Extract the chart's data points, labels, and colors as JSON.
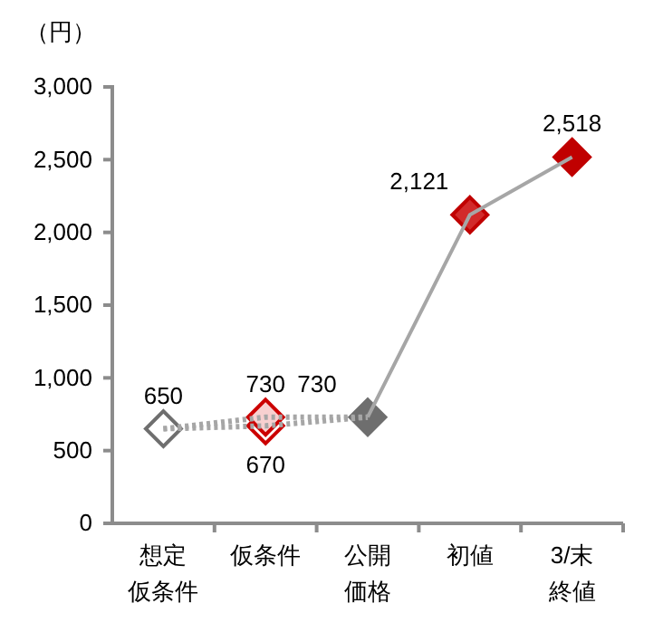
{
  "chart_data": {
    "type": "line",
    "ylabel": "（円）",
    "categories": [
      "想定仮条件",
      "仮条件",
      "公開価格",
      "初値",
      "3/末終値"
    ],
    "ylim": [
      0,
      3000
    ],
    "yticks": [
      0,
      {
        "value": 500,
        "label": "500"
      },
      {
        "value": 1000,
        "label": "1,000"
      },
      {
        "value": 1500,
        "label": "1,500"
      },
      {
        "value": 2000,
        "label": "2,000"
      },
      {
        "value": 2500,
        "label": "2,500"
      },
      {
        "value": 3000,
        "label": "3,000"
      }
    ],
    "grid": false,
    "series": [
      {
        "color": "#a6a6a6",
        "line_style": "dotted",
        "values": [
          650,
          670,
          730,
          null,
          null
        ]
      },
      {
        "color": "#a6a6a6",
        "line_style": "dotted",
        "values": [
          650,
          730,
          730,
          null,
          null
        ]
      },
      {
        "color": "#a6a6a6",
        "line_style": "solid",
        "values": [
          null,
          null,
          730,
          2121,
          2518
        ]
      },
      {
        "type": "scatter",
        "color": "#cc0000",
        "marker": "diamond",
        "values": [
          null,
          670,
          null,
          null,
          null
        ],
        "colors": [
          null,
          "#ffffff",
          null,
          null,
          null
        ],
        "value_labels": [
          null,
          "670",
          null,
          null,
          null
        ]
      },
      {
        "type": "scatter",
        "color": "#cc0000",
        "marker": "diamond",
        "values": [
          null,
          730,
          null,
          null,
          null
        ],
        "colors": [
          null,
          "#f8d0d0",
          null,
          null,
          null
        ],
        "value_labels": [
          null,
          "730",
          null,
          null,
          null
        ]
      },
      {
        "type": "scatter",
        "color": "#6e6e6e",
        "marker": "diamond",
        "values": [
          650,
          null,
          730,
          null,
          null
        ],
        "colors": [
          "#ffffff",
          null,
          "#6e6e6e",
          null,
          null
        ],
        "value_labels": [
          "650",
          null,
          "730",
          null,
          null
        ]
      },
      {
        "type": "scatter",
        "color": "#c00000",
        "marker": "diamond",
        "values": [
          null,
          null,
          null,
          2121,
          2518
        ],
        "colors": [
          null,
          null,
          null,
          "#d22a2a",
          "#c00000"
        ],
        "value_labels": [
          null,
          null,
          null,
          "2,121",
          "2,518"
        ]
      }
    ]
  }
}
